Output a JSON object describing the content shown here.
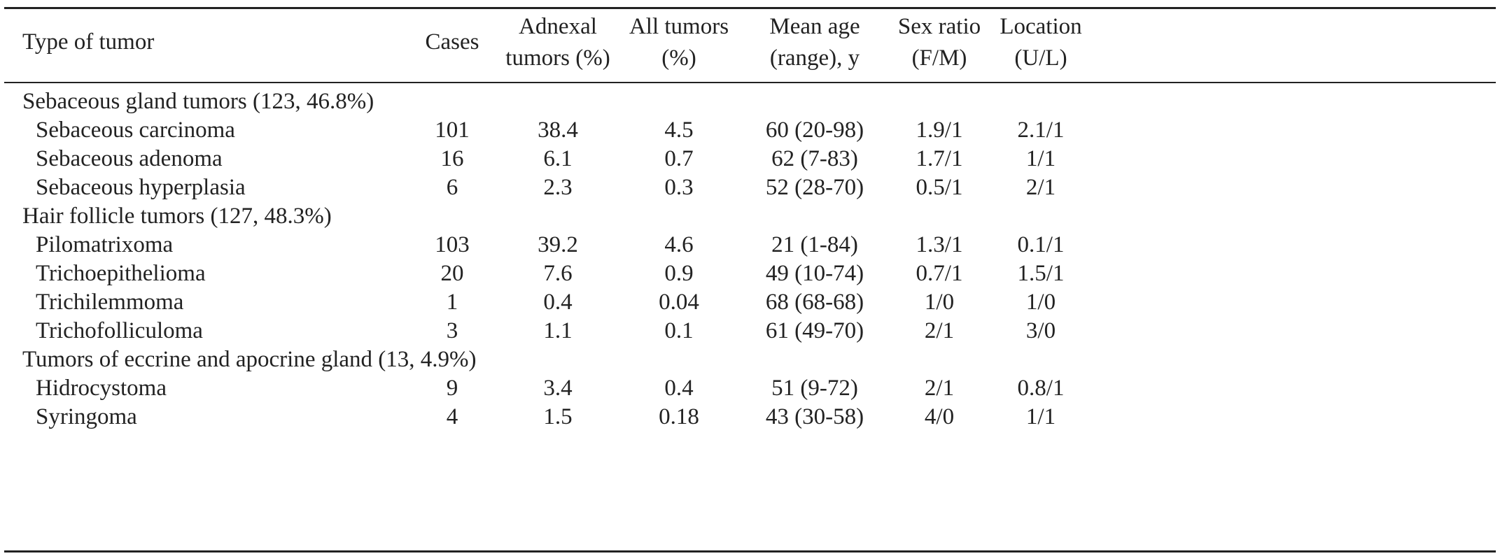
{
  "columns": [
    {
      "line1": "Type of tumor",
      "line2": ""
    },
    {
      "line1": "Cases",
      "line2": ""
    },
    {
      "line1": "Adnexal",
      "line2": "tumors (%)"
    },
    {
      "line1": "All tumors",
      "line2": "(%)"
    },
    {
      "line1": "Mean age",
      "line2": "(range), y"
    },
    {
      "line1": "Sex ratio",
      "line2": "(F/M)"
    },
    {
      "line1": "Location",
      "line2": "(U/L)"
    }
  ],
  "rows": [
    {
      "kind": "group",
      "name": "Sebaceous gland tumors (123, 46.8%)"
    },
    {
      "kind": "item",
      "name": "Sebaceous carcinoma",
      "cases": "101",
      "adnexal": "38.4",
      "all": "4.5",
      "age": "60 (20-98)",
      "sex": "1.9/1",
      "loc": "2.1/1"
    },
    {
      "kind": "item",
      "name": "Sebaceous adenoma",
      "cases": "16",
      "adnexal": "6.1",
      "all": "0.7",
      "age": "62 (7-83)",
      "sex": "1.7/1",
      "loc": "1/1"
    },
    {
      "kind": "item",
      "name": "Sebaceous hyperplasia",
      "cases": "6",
      "adnexal": "2.3",
      "all": "0.3",
      "age": "52 (28-70)",
      "sex": "0.5/1",
      "loc": "2/1"
    },
    {
      "kind": "group",
      "name": "Hair follicle tumors (127, 48.3%)"
    },
    {
      "kind": "item",
      "name": "Pilomatrixoma",
      "cases": "103",
      "adnexal": "39.2",
      "all": "4.6",
      "age": "21 (1-84)",
      "sex": "1.3/1",
      "loc": "0.1/1"
    },
    {
      "kind": "item",
      "name": "Trichoepithelioma",
      "cases": "20",
      "adnexal": "7.6",
      "all": "0.9",
      "age": "49 (10-74)",
      "sex": "0.7/1",
      "loc": "1.5/1"
    },
    {
      "kind": "item",
      "name": "Trichilemmoma",
      "cases": "1",
      "adnexal": "0.4",
      "all": "0.04",
      "age": "68 (68-68)",
      "sex": "1/0",
      "loc": "1/0"
    },
    {
      "kind": "item",
      "name": "Trichofolliculoma",
      "cases": "3",
      "adnexal": "1.1",
      "all": "0.1",
      "age": "61 (49-70)",
      "sex": "2/1",
      "loc": "3/0"
    },
    {
      "kind": "group",
      "name": "Tumors of eccrine and apocrine gland (13, 4.9%)"
    },
    {
      "kind": "item",
      "name": "Hidrocystoma",
      "cases": "9",
      "adnexal": "3.4",
      "all": "0.4",
      "age": "51 (9-72)",
      "sex": "2/1",
      "loc": "0.8/1"
    },
    {
      "kind": "item",
      "name": "Syringoma",
      "cases": "4",
      "adnexal": "1.5",
      "all": "0.18",
      "age": "43 (30-58)",
      "sex": "4/0",
      "loc": "1/1"
    }
  ]
}
